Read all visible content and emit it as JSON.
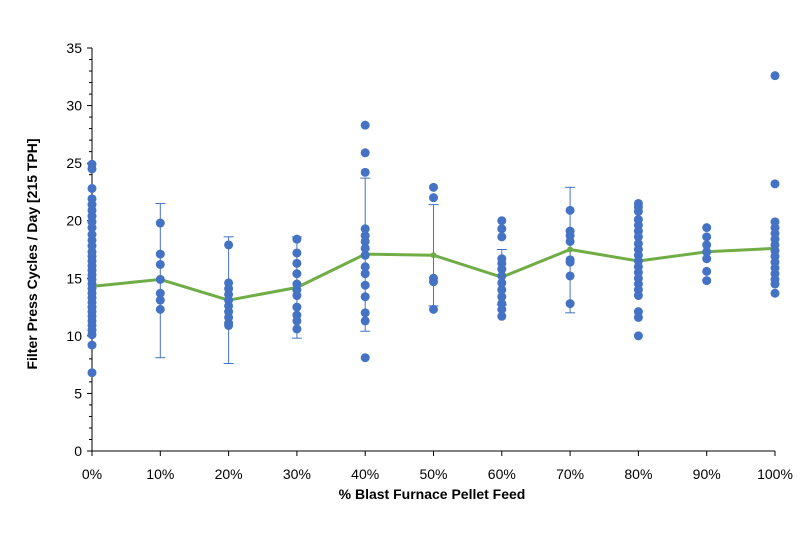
{
  "chart_data": {
    "type": "scatter",
    "xlabel": "% Blast Furnace Pellet Feed",
    "ylabel": "Filter Press Cycles / Day [215 TPH]",
    "ylim": [
      0,
      35
    ],
    "yticks": [
      "0",
      "5",
      "10",
      "15",
      "20",
      "25",
      "30",
      "35"
    ],
    "categories": [
      "0%",
      "10%",
      "20%",
      "30%",
      "40%",
      "50%",
      "60%",
      "70%",
      "80%",
      "90%",
      "100%"
    ],
    "x": [
      0,
      10,
      20,
      30,
      40,
      50,
      60,
      70,
      80,
      90,
      100
    ],
    "grid": false,
    "legend": "none",
    "colors": {
      "points": "#4472c4",
      "mean_line": "#70ad47",
      "error_bars": "#4472c4",
      "axis": "#000000"
    },
    "series": [
      {
        "type": "scatter",
        "points": [
          [
            0,
            24.9
          ],
          [
            0,
            24.5
          ],
          [
            0,
            22.8
          ],
          [
            0,
            21.9
          ],
          [
            0,
            21.4
          ],
          [
            0,
            20.9
          ],
          [
            0,
            20.4
          ],
          [
            0,
            19.9
          ],
          [
            0,
            19.4
          ],
          [
            0,
            18.8
          ],
          [
            0,
            18.3
          ],
          [
            0,
            17.8
          ],
          [
            0,
            17.3
          ],
          [
            0,
            16.9
          ],
          [
            0,
            16.5
          ],
          [
            0,
            16.1
          ],
          [
            0,
            15.7
          ],
          [
            0,
            15.3
          ],
          [
            0,
            14.9
          ],
          [
            0,
            14.5
          ],
          [
            0,
            14.1
          ],
          [
            0,
            13.7
          ],
          [
            0,
            13.3
          ],
          [
            0,
            12.9
          ],
          [
            0,
            12.5
          ],
          [
            0,
            12.1
          ],
          [
            0,
            11.7
          ],
          [
            0,
            11.3
          ],
          [
            0,
            10.9
          ],
          [
            0,
            10.5
          ],
          [
            0,
            10.1
          ],
          [
            0,
            9.2
          ],
          [
            0,
            6.8
          ],
          [
            10,
            19.8
          ],
          [
            10,
            17.1
          ],
          [
            10,
            16.2
          ],
          [
            10,
            14.9
          ],
          [
            10,
            13.7
          ],
          [
            10,
            13.1
          ],
          [
            10,
            12.3
          ],
          [
            20,
            17.9
          ],
          [
            20,
            14.6
          ],
          [
            20,
            14.1
          ],
          [
            20,
            13.6
          ],
          [
            20,
            13.1
          ],
          [
            20,
            12.6
          ],
          [
            20,
            12.1
          ],
          [
            20,
            11.6
          ],
          [
            20,
            11.1
          ],
          [
            20,
            10.9
          ],
          [
            30,
            18.4
          ],
          [
            30,
            17.2
          ],
          [
            30,
            16.3
          ],
          [
            30,
            15.4
          ],
          [
            30,
            14.5
          ],
          [
            30,
            14.0
          ],
          [
            30,
            13.5
          ],
          [
            30,
            12.5
          ],
          [
            30,
            11.8
          ],
          [
            30,
            11.3
          ],
          [
            30,
            10.6
          ],
          [
            40,
            28.3
          ],
          [
            40,
            25.9
          ],
          [
            40,
            24.2
          ],
          [
            40,
            19.3
          ],
          [
            40,
            18.7
          ],
          [
            40,
            18.2
          ],
          [
            40,
            17.6
          ],
          [
            40,
            17.0
          ],
          [
            40,
            16.0
          ],
          [
            40,
            15.4
          ],
          [
            40,
            14.4
          ],
          [
            40,
            13.4
          ],
          [
            40,
            12.0
          ],
          [
            40,
            11.3
          ],
          [
            40,
            8.1
          ],
          [
            50,
            22.9
          ],
          [
            50,
            22.0
          ],
          [
            50,
            15.0
          ],
          [
            50,
            14.7
          ],
          [
            50,
            12.3
          ],
          [
            60,
            20.0
          ],
          [
            60,
            19.3
          ],
          [
            60,
            18.6
          ],
          [
            60,
            16.7
          ],
          [
            60,
            16.3
          ],
          [
            60,
            15.8
          ],
          [
            60,
            15.2
          ],
          [
            60,
            14.6
          ],
          [
            60,
            14.0
          ],
          [
            60,
            13.4
          ],
          [
            60,
            12.8
          ],
          [
            60,
            12.3
          ],
          [
            60,
            11.7
          ],
          [
            70,
            20.9
          ],
          [
            70,
            19.1
          ],
          [
            70,
            18.7
          ],
          [
            70,
            18.2
          ],
          [
            70,
            16.6
          ],
          [
            70,
            16.4
          ],
          [
            70,
            15.2
          ],
          [
            70,
            12.8
          ],
          [
            80,
            21.5
          ],
          [
            80,
            21.2
          ],
          [
            80,
            20.8
          ],
          [
            80,
            20.1
          ],
          [
            80,
            19.6
          ],
          [
            80,
            19.1
          ],
          [
            80,
            18.6
          ],
          [
            80,
            18.0
          ],
          [
            80,
            17.5
          ],
          [
            80,
            17.0
          ],
          [
            80,
            16.5
          ],
          [
            80,
            16.0
          ],
          [
            80,
            15.5
          ],
          [
            80,
            15.0
          ],
          [
            80,
            14.5
          ],
          [
            80,
            14.0
          ],
          [
            80,
            13.5
          ],
          [
            80,
            12.1
          ],
          [
            80,
            11.6
          ],
          [
            80,
            10.0
          ],
          [
            90,
            19.4
          ],
          [
            90,
            18.6
          ],
          [
            90,
            17.9
          ],
          [
            90,
            17.3
          ],
          [
            90,
            16.7
          ],
          [
            90,
            15.6
          ],
          [
            90,
            14.8
          ],
          [
            100,
            32.6
          ],
          [
            100,
            23.2
          ],
          [
            100,
            19.9
          ],
          [
            100,
            19.4
          ],
          [
            100,
            18.9
          ],
          [
            100,
            18.4
          ],
          [
            100,
            17.9
          ],
          [
            100,
            17.4
          ],
          [
            100,
            16.9
          ],
          [
            100,
            16.4
          ],
          [
            100,
            15.9
          ],
          [
            100,
            15.4
          ],
          [
            100,
            14.9
          ],
          [
            100,
            14.5
          ],
          [
            100,
            13.7
          ]
        ]
      },
      {
        "type": "line",
        "values": [
          14.3,
          14.9,
          13.1,
          14.2,
          17.1,
          17.0,
          15.1,
          17.5,
          16.5,
          17.3,
          17.6
        ],
        "error_bars": [
          [
            null,
            null
          ],
          [
            8.1,
            21.5
          ],
          [
            7.6,
            18.6
          ],
          [
            9.8,
            18.6
          ],
          [
            10.4,
            23.7
          ],
          [
            12.6,
            21.4
          ],
          [
            12.7,
            17.5
          ],
          [
            12.0,
            22.9
          ],
          [
            null,
            null
          ],
          [
            null,
            null
          ],
          [
            null,
            null
          ]
        ]
      }
    ]
  }
}
